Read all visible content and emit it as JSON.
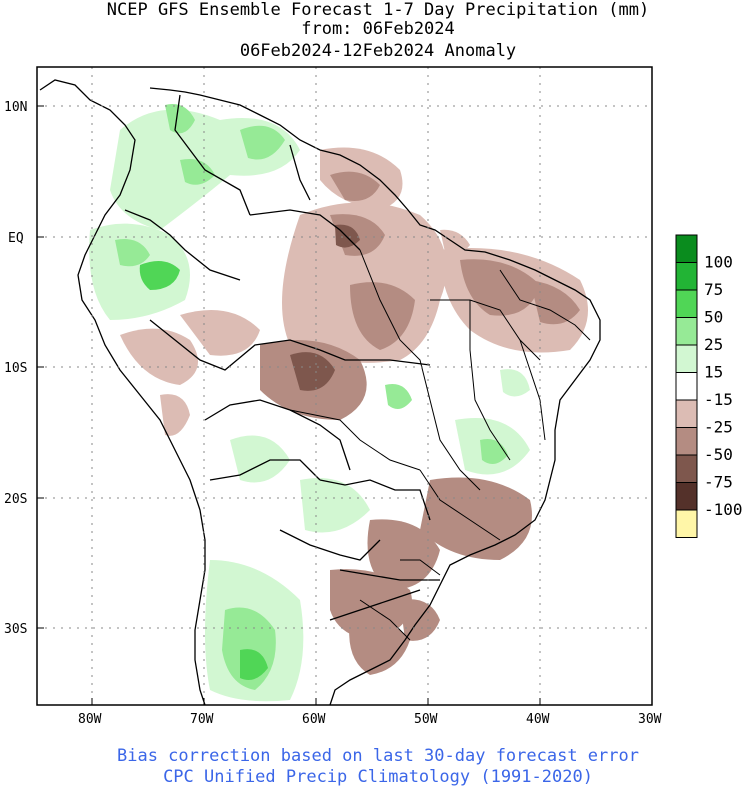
{
  "header": {
    "line1": "NCEP GFS Ensemble Forecast 1-7 Day Precipitation (mm)",
    "line2": "from: 06Feb2024",
    "line3": "06Feb2024-12Feb2024 Anomaly"
  },
  "axes": {
    "lat_labels": [
      "10N",
      "EQ",
      "10S",
      "20S",
      "30S"
    ],
    "lon_labels": [
      "80W",
      "70W",
      "60W",
      "50W",
      "40W",
      "30W"
    ]
  },
  "legend": {
    "items": [
      {
        "label": "100",
        "color": "#0a8c1e"
      },
      {
        "label": "75",
        "color": "#22b435"
      },
      {
        "label": "50",
        "color": "#50d656"
      },
      {
        "label": "25",
        "color": "#96ea96"
      },
      {
        "label": "15",
        "color": "#d2f7d2"
      },
      {
        "label": "-15",
        "color": "#ffffff"
      },
      {
        "label": "-25",
        "color": "#dcbcb4"
      },
      {
        "label": "-50",
        "color": "#b48c82"
      },
      {
        "label": "-75",
        "color": "#7e574d"
      },
      {
        "label": "-100",
        "color": "#54312a"
      },
      {
        "label": "",
        "color": "#fff6a8"
      }
    ]
  },
  "footer": {
    "line1": "Bias correction based on last 30-day forecast error",
    "line2": "CPC Unified Precip Climatology (1991-2020)"
  },
  "colors": {
    "wet_light": "#d2f7d2",
    "wet_mid": "#96ea96",
    "wet_strong": "#50d656",
    "dry_light": "#dcbcb4",
    "dry_mid": "#b48c82",
    "dry_strong": "#7e574d",
    "footer_text": "#3b66e8"
  }
}
